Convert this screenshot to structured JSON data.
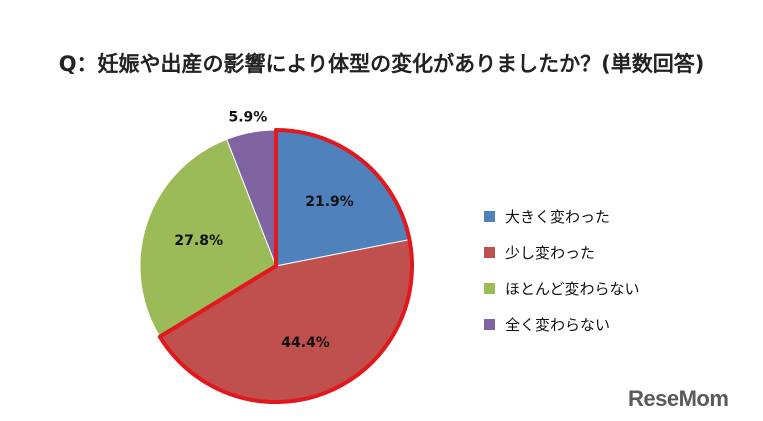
{
  "chart_data": {
    "type": "pie",
    "title": "Q：妊娠や出産の影響により体型の変化がありましたか？(単数回答)",
    "categories": [
      "大きく変わった",
      "少し変わった",
      "ほとんど変わらない",
      "全く変わらない"
    ],
    "values": [
      21.9,
      44.4,
      27.8,
      5.9
    ],
    "value_labels": [
      "21.9%",
      "44.4%",
      "27.8%",
      "5.9%"
    ],
    "colors": [
      "#4f81bd",
      "#c0504d",
      "#9bbb59",
      "#8064a2"
    ],
    "highlight": {
      "slices": [
        0,
        1
      ],
      "color": "#e0191e"
    },
    "legend_position": "right",
    "start_angle": "top",
    "direction": "clockwise"
  },
  "logo": {
    "text": "ReseMom"
  }
}
